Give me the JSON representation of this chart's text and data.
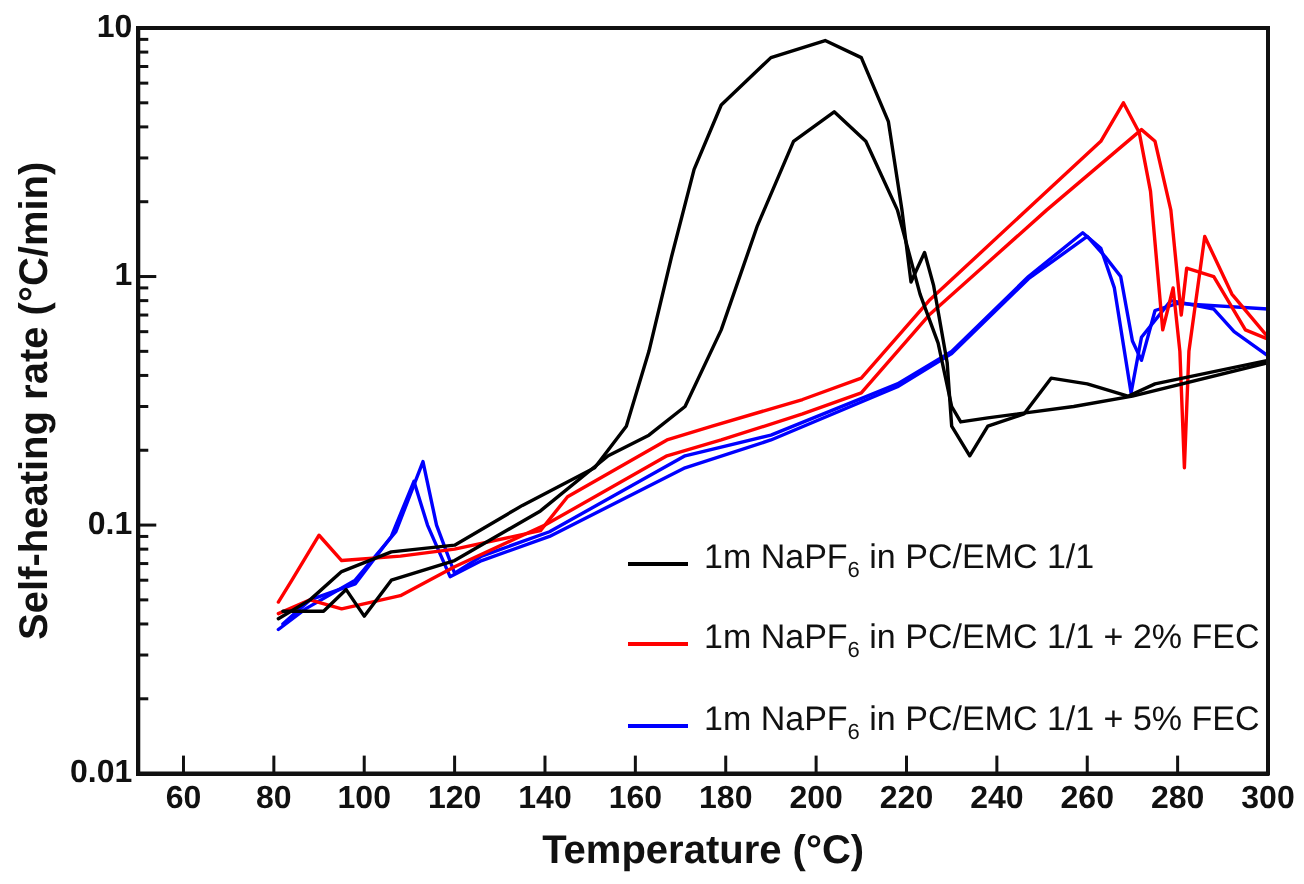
{
  "chart_data": {
    "type": "line",
    "xlabel": "Temperature (°C)",
    "ylabel": "Self-heating rate (°C/min)",
    "xlim": [
      50,
      300
    ],
    "xticks": [
      60,
      80,
      100,
      120,
      140,
      160,
      180,
      200,
      220,
      240,
      260,
      280,
      300
    ],
    "ylim": [
      0.01,
      10
    ],
    "log": "y",
    "yticks": [
      0.01,
      {
        "value": 0.02,
        "label": null
      },
      {
        "value": 0.03,
        "label": null
      },
      {
        "value": 0.04,
        "label": null
      },
      {
        "value": 0.05,
        "label": null
      },
      {
        "value": 0.06,
        "label": null
      },
      {
        "value": 0.07,
        "label": null
      },
      {
        "value": 0.08,
        "label": null
      },
      {
        "value": 0.09,
        "label": null
      },
      0.1,
      {
        "value": 0.2,
        "label": null
      },
      {
        "value": 0.3,
        "label": null
      },
      {
        "value": 0.4,
        "label": null
      },
      {
        "value": 0.5,
        "label": null
      },
      {
        "value": 0.6,
        "label": null
      },
      {
        "value": 0.7,
        "label": null
      },
      {
        "value": 0.8,
        "label": null
      },
      {
        "value": 0.9,
        "label": null
      },
      1,
      {
        "value": 2,
        "label": null
      },
      {
        "value": 3,
        "label": null
      },
      {
        "value": 4,
        "label": null
      },
      {
        "value": 5,
        "label": null
      },
      {
        "value": 6,
        "label": null
      },
      {
        "value": 7,
        "label": null
      },
      {
        "value": 8,
        "label": null
      },
      {
        "value": 9,
        "label": null
      },
      10
    ],
    "grid": false,
    "legend": "bottom right",
    "marker": "none",
    "line_style": "solid",
    "series": [
      {
        "name": "1m NaPF$_{6}$ in PC/EMC 1/1",
        "color": "#000000",
        "x": [
          81,
          88,
          95,
          106,
          120,
          135,
          151,
          158,
          163,
          168,
          173,
          179,
          190,
          202,
          210,
          216,
          219,
          221,
          224,
          226,
          229,
          230,
          234,
          238,
          246,
          252,
          260,
          269,
          275,
          300
        ],
        "values": [
          0.042,
          0.05,
          0.065,
          0.078,
          0.083,
          0.12,
          0.17,
          0.25,
          0.5,
          1.2,
          2.7,
          4.9,
          7.6,
          8.9,
          7.6,
          4.2,
          1.85,
          0.95,
          1.25,
          0.92,
          0.45,
          0.25,
          0.19,
          0.25,
          0.28,
          0.39,
          0.37,
          0.33,
          0.37,
          0.46
        ]
      },
      {
        "color": "#000000",
        "x": [
          82,
          91,
          96,
          100,
          106,
          120,
          139,
          154,
          163,
          171,
          179,
          187,
          195,
          204,
          211,
          218,
          223,
          227,
          230,
          232,
          238,
          257,
          270,
          300
        ],
        "values": [
          0.045,
          0.045,
          0.055,
          0.043,
          0.06,
          0.072,
          0.114,
          0.19,
          0.23,
          0.3,
          0.61,
          1.6,
          3.5,
          4.6,
          3.5,
          1.85,
          0.85,
          0.54,
          0.3,
          0.26,
          0.27,
          0.3,
          0.33,
          0.45
        ]
      },
      {
        "name": "1m NaPF$_{6}$ in PC/EMC 1/1 + 2% FEC",
        "color": "#ff0000",
        "x": [
          81,
          84,
          90,
          95,
          108,
          120,
          139,
          145,
          167,
          177,
          197,
          210,
          225,
          251,
          263,
          268,
          271.5,
          274,
          276.7,
          279,
          280.5,
          281.5,
          282.5,
          286,
          292,
          300
        ],
        "values": [
          0.049,
          0.06,
          0.091,
          0.072,
          0.075,
          0.08,
          0.095,
          0.13,
          0.22,
          0.25,
          0.32,
          0.39,
          0.8,
          2.2,
          3.5,
          5.0,
          3.8,
          2.2,
          0.61,
          0.9,
          0.5,
          0.17,
          0.5,
          1.45,
          0.85,
          0.57
        ]
      },
      {
        "color": "#ff0000",
        "x": [
          81,
          88,
          95,
          108,
          120,
          140,
          167,
          179,
          197,
          210,
          225,
          251,
          272,
          275,
          278.5,
          280.8,
          282,
          288,
          295,
          300
        ],
        "values": [
          0.044,
          0.05,
          0.046,
          0.052,
          0.068,
          0.1,
          0.19,
          0.22,
          0.28,
          0.34,
          0.7,
          1.85,
          3.9,
          3.5,
          1.85,
          0.7,
          1.08,
          1.0,
          0.61,
          0.56
        ]
      },
      {
        "name": "1m NaPF$_{6}$ in PC/EMC 1/1 + 5% FEC",
        "color": "#0000ff",
        "x": [
          81,
          87,
          98,
          107,
          113,
          116,
          120,
          126,
          141,
          171,
          190,
          218,
          230,
          247,
          259,
          263,
          266,
          269.7,
          272,
          278.5,
          288,
          292.5,
          300
        ],
        "values": [
          0.038,
          0.046,
          0.06,
          0.094,
          0.18,
          0.1,
          0.064,
          0.075,
          0.094,
          0.19,
          0.23,
          0.37,
          0.5,
          1.0,
          1.5,
          1.3,
          0.9,
          0.34,
          0.57,
          0.8,
          0.74,
          0.6,
          0.48
        ]
      },
      {
        "color": "#0000ff",
        "x": [
          82,
          88,
          98,
          106,
          111,
          114,
          119,
          126,
          141,
          171,
          190,
          218,
          230,
          247,
          260,
          264,
          267.4,
          270,
          272,
          275,
          280,
          300
        ],
        "values": [
          0.04,
          0.05,
          0.058,
          0.09,
          0.15,
          0.1,
          0.062,
          0.072,
          0.09,
          0.17,
          0.22,
          0.36,
          0.49,
          0.98,
          1.45,
          1.2,
          1.0,
          0.55,
          0.46,
          0.73,
          0.78,
          0.74
        ]
      }
    ]
  }
}
